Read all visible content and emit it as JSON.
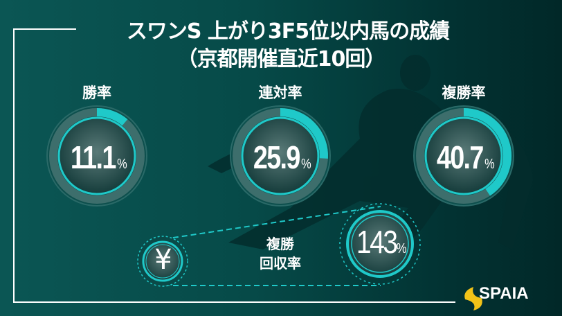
{
  "title": {
    "line1": "スワンS 上がり3F5位以内馬の成績",
    "line2": "（京都開催直近10回）"
  },
  "gauges": [
    {
      "label": "勝率",
      "value": "11.1",
      "unit": "%",
      "fraction": 0.111
    },
    {
      "label": "連対率",
      "value": "25.9",
      "unit": "%",
      "fraction": 0.259
    },
    {
      "label": "複勝率",
      "value": "40.7",
      "unit": "%",
      "fraction": 0.407
    }
  ],
  "return_rate": {
    "label_line1": "複勝",
    "label_line2": "回収率",
    "value": "143",
    "unit": "%",
    "icon": "yen-icon"
  },
  "brand": {
    "name": "SPAIA"
  },
  "colors": {
    "accent": "#1fc9c9",
    "background": "#064a48",
    "logo": "#f2c318"
  }
}
